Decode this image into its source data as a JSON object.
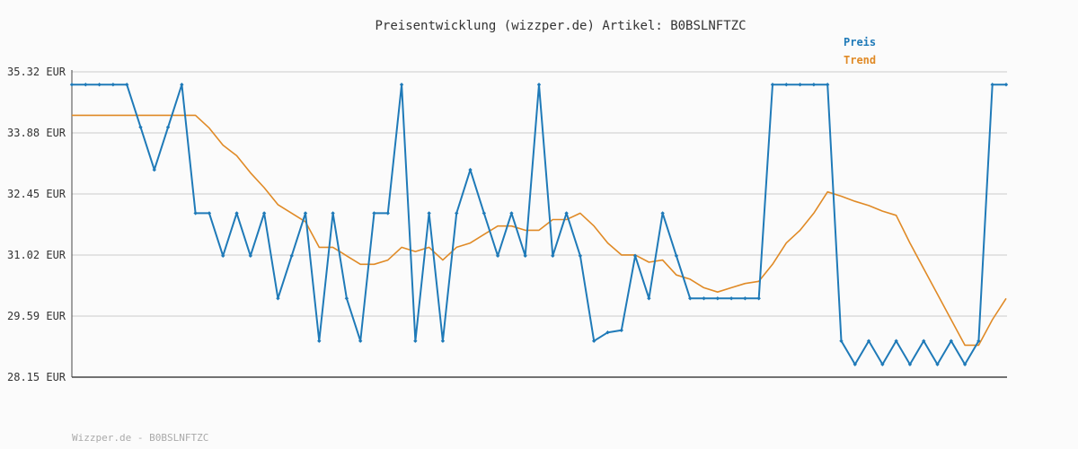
{
  "chart_data": {
    "type": "line",
    "title": "Preisentwicklung (wizzper.de) Artikel: B0BSLNFTZC",
    "footer": "Wizzper.de - B0BSLNFTZC",
    "y_ticks": [
      "35.32 EUR",
      "33.88 EUR",
      "32.45 EUR",
      "31.02 EUR",
      "29.59 EUR",
      "28.15 EUR"
    ],
    "ylim": [
      28.15,
      35.32
    ],
    "grid": true,
    "legend_position": "top-right",
    "series": [
      {
        "name": "Preis",
        "color": "#1f7ab8",
        "values": [
          35.02,
          35.02,
          35.02,
          35.02,
          35.02,
          34.02,
          33.02,
          34.02,
          35.02,
          32.0,
          32.0,
          31.0,
          32.0,
          31.0,
          32.0,
          30.0,
          31.0,
          32.0,
          29.0,
          32.0,
          30.0,
          29.0,
          32.0,
          32.0,
          35.02,
          29.0,
          32.0,
          29.0,
          32.0,
          33.02,
          32.0,
          31.0,
          32.0,
          31.0,
          35.02,
          31.0,
          32.0,
          31.0,
          29.0,
          29.2,
          29.25,
          31.0,
          30.0,
          32.0,
          31.0,
          30.0,
          30.0,
          30.0,
          30.0,
          30.0,
          30.0,
          35.02,
          35.02,
          35.02,
          35.02,
          35.02,
          29.0,
          28.45,
          29.0,
          28.45,
          29.0,
          28.45,
          29.0,
          28.45,
          29.0,
          28.45,
          29.0,
          35.02,
          35.02
        ]
      },
      {
        "name": "Trend",
        "color": "#e08a26",
        "values": [
          34.3,
          34.3,
          34.3,
          34.3,
          34.3,
          34.3,
          34.3,
          34.3,
          34.3,
          34.3,
          34.0,
          33.6,
          33.35,
          32.95,
          32.6,
          32.2,
          32.0,
          31.8,
          31.2,
          31.2,
          31.0,
          30.8,
          30.8,
          30.9,
          31.2,
          31.1,
          31.2,
          30.9,
          31.2,
          31.3,
          31.5,
          31.7,
          31.7,
          31.6,
          31.6,
          31.85,
          31.85,
          32.0,
          31.7,
          31.3,
          31.02,
          31.02,
          30.85,
          30.9,
          30.55,
          30.45,
          30.25,
          30.15,
          30.25,
          30.35,
          30.4,
          30.8,
          31.3,
          31.6,
          32.0,
          32.5,
          32.4,
          32.28,
          32.18,
          32.05,
          31.95,
          31.3,
          30.7,
          30.1,
          29.5,
          28.9,
          28.9,
          29.5,
          30.0
        ]
      }
    ]
  }
}
